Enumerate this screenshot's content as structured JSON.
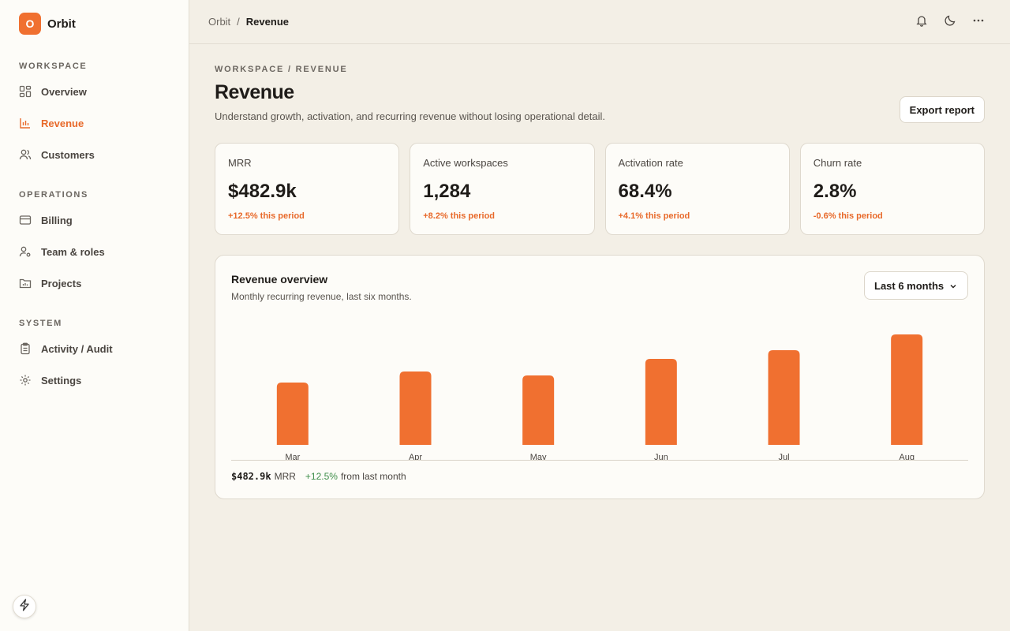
{
  "brand": {
    "logo_letter": "O",
    "name": "Orbit",
    "accent": "#f07030"
  },
  "sidebar": {
    "sections": [
      {
        "label": "WORKSPACE",
        "items": [
          {
            "label": "Overview",
            "icon": "dashboard-icon",
            "active": false
          },
          {
            "label": "Revenue",
            "icon": "bar-chart-icon",
            "active": true
          },
          {
            "label": "Customers",
            "icon": "users-icon",
            "active": false
          }
        ]
      },
      {
        "label": "OPERATIONS",
        "items": [
          {
            "label": "Billing",
            "icon": "credit-card-icon",
            "active": false
          },
          {
            "label": "Team & roles",
            "icon": "user-cog-icon",
            "active": false
          },
          {
            "label": "Projects",
            "icon": "folder-chart-icon",
            "active": false
          }
        ]
      },
      {
        "label": "SYSTEM",
        "items": [
          {
            "label": "Activity / Audit",
            "icon": "clipboard-icon",
            "active": false
          },
          {
            "label": "Settings",
            "icon": "gear-icon",
            "active": false
          }
        ]
      }
    ]
  },
  "topbar": {
    "breadcrumb_root": "Orbit",
    "breadcrumb_sep": "/",
    "breadcrumb_current": "Revenue"
  },
  "page": {
    "eyebrow": "WORKSPACE / REVENUE",
    "title": "Revenue",
    "subtitle": "Understand growth, activation, and recurring revenue without losing operational detail.",
    "export_label": "Export report"
  },
  "kpis": [
    {
      "label": "MRR",
      "value": "$482.9k",
      "delta": "+12.5% this period"
    },
    {
      "label": "Active workspaces",
      "value": "1,284",
      "delta": "+8.2% this period"
    },
    {
      "label": "Activation rate",
      "value": "68.4%",
      "delta": "+4.1% this period"
    },
    {
      "label": "Churn rate",
      "value": "2.8%",
      "delta": "-0.6% this period"
    }
  ],
  "panel": {
    "title": "Revenue overview",
    "subtitle": "Monthly recurring revenue, last six months.",
    "range_label": "Last 6 months",
    "summary_value": "$482.9k",
    "summary_unit": "MRR",
    "summary_change": "+12.5%",
    "summary_change_text": "from last month"
  },
  "chart_data": {
    "type": "bar",
    "categories": [
      "Mar",
      "Apr",
      "May",
      "Jun",
      "Jul",
      "Aug"
    ],
    "values": [
      79,
      93,
      88,
      109,
      120,
      140
    ],
    "bar_color": "#f07030",
    "ylim": [
      0,
      150
    ]
  }
}
